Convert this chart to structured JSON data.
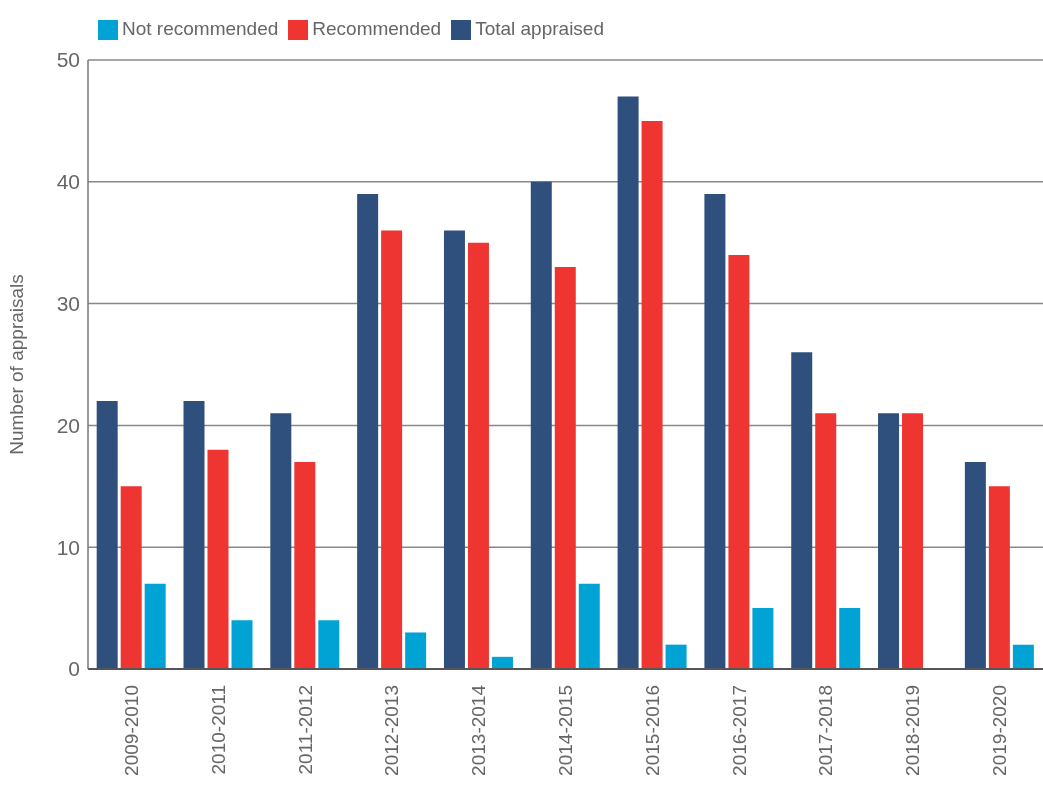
{
  "chart_data": {
    "type": "bar",
    "ylabel": "Number of appraisals",
    "categories": [
      "2009-2010",
      "2010-2011",
      "2011-2012",
      "2012-2013",
      "2013-2014",
      "2014-2015",
      "2015-2016",
      "2016-2017",
      "2017-2018",
      "2018-2019",
      "2019-2020"
    ],
    "series": [
      {
        "name": "Total appraised",
        "color": "#2f507c",
        "values": [
          22,
          22,
          21,
          39,
          36,
          40,
          47,
          39,
          26,
          21,
          17
        ]
      },
      {
        "name": "Recommended",
        "color": "#ee3532",
        "values": [
          15,
          18,
          17,
          36,
          35,
          33,
          45,
          34,
          21,
          21,
          15
        ]
      },
      {
        "name": "Not recommended",
        "color": "#00a3d4",
        "values": [
          7,
          4,
          4,
          3,
          1,
          7,
          2,
          5,
          5,
          0,
          2
        ]
      }
    ],
    "ylim": [
      0,
      50
    ],
    "yticks": [
      0,
      10,
      20,
      30,
      40,
      50
    ],
    "grid": "y",
    "legend": "top left"
  }
}
